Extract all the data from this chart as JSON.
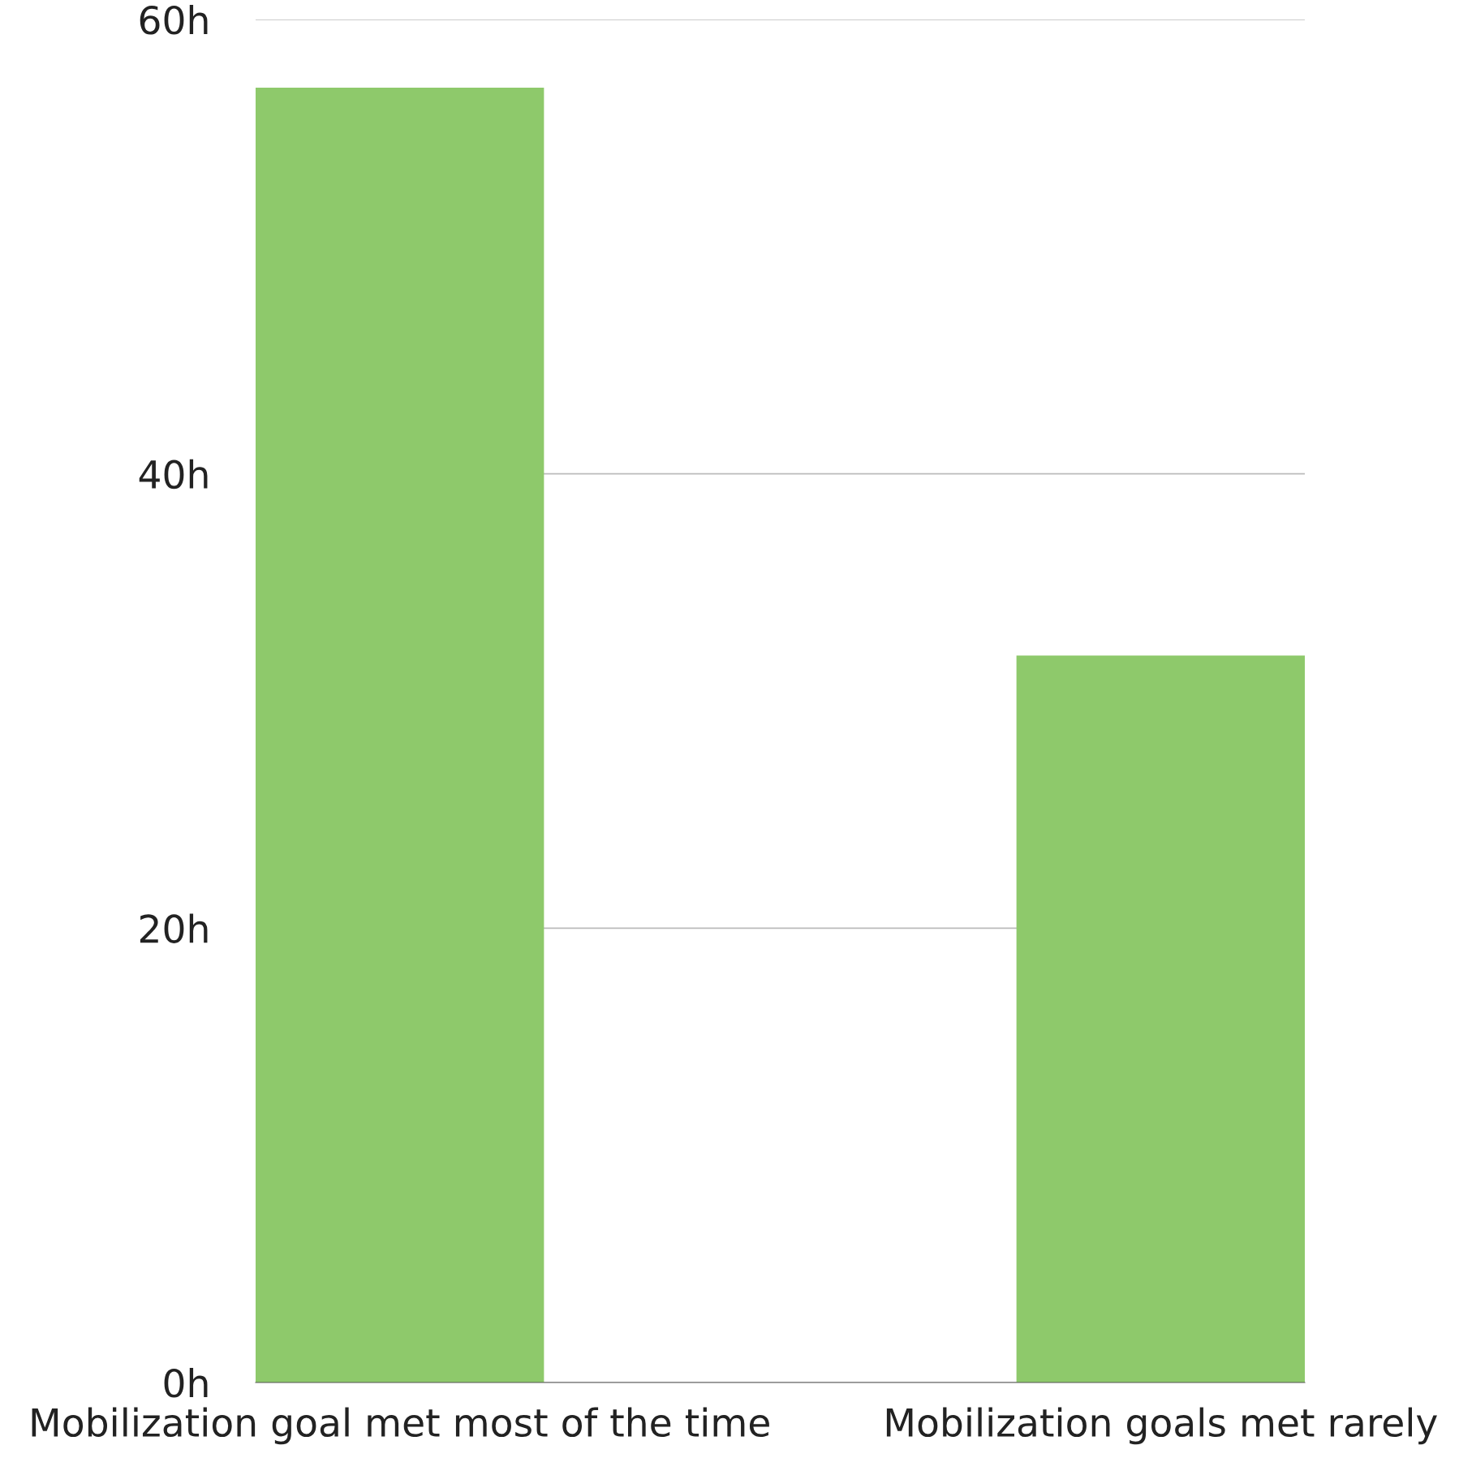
{
  "chart_data": {
    "type": "bar",
    "categories": [
      "Mobilization goal met most of the time",
      "Mobilization goals met rarely"
    ],
    "values": [
      57,
      32
    ],
    "color": "#8ec96b",
    "ylim": [
      0,
      60
    ],
    "yticks": [
      {
        "value": 0,
        "label": "0h"
      },
      {
        "value": 20,
        "label": "20h"
      },
      {
        "value": 40,
        "label": "40h"
      },
      {
        "value": 60,
        "label": "60h"
      }
    ],
    "grid": "y"
  }
}
